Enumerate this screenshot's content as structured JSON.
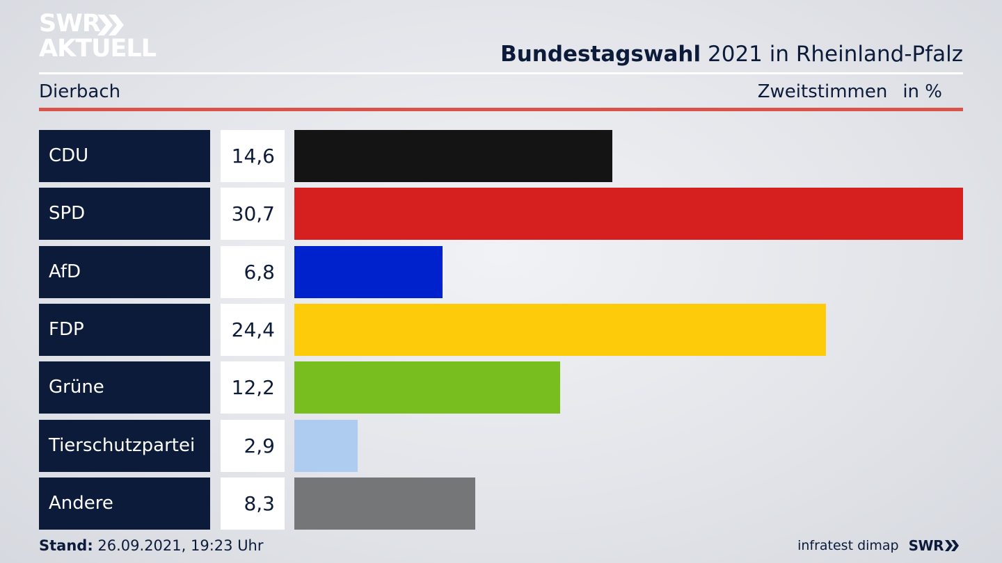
{
  "logo": {
    "line1": "SWR",
    "line2": "AKTUELL",
    "icon": "double-chevron-icon"
  },
  "header": {
    "title_bold": "Bundestagswahl",
    "title_rest": "2021 in Rheinland-Pfalz",
    "region": "Dierbach",
    "measure": "Zweitstimmen",
    "unit": "in %"
  },
  "footer": {
    "stand_label": "Stand:",
    "stand_value": "26.09.2021, 19:23 Uhr",
    "source": "infratest dimap",
    "brand": "SWR"
  },
  "colors": {
    "accent_red": "#d9534a",
    "panel_navy": "#0c1b3a"
  },
  "chart_data": {
    "type": "bar",
    "orientation": "horizontal",
    "categories": [
      "CDU",
      "SPD",
      "AfD",
      "FDP",
      "Grüne",
      "Tierschutzpartei",
      "Andere"
    ],
    "values": [
      14.6,
      30.7,
      6.8,
      24.4,
      12.2,
      2.9,
      8.3
    ],
    "value_labels": [
      "14,6",
      "30,7",
      "6,8",
      "24,4",
      "12,2",
      "2,9",
      "8,3"
    ],
    "colors": [
      "#141414",
      "#d62020",
      "#0022cc",
      "#fdcb0a",
      "#78be1e",
      "#aecbf0",
      "#757678"
    ],
    "xlim": [
      0,
      30.7
    ],
    "grid": false
  }
}
